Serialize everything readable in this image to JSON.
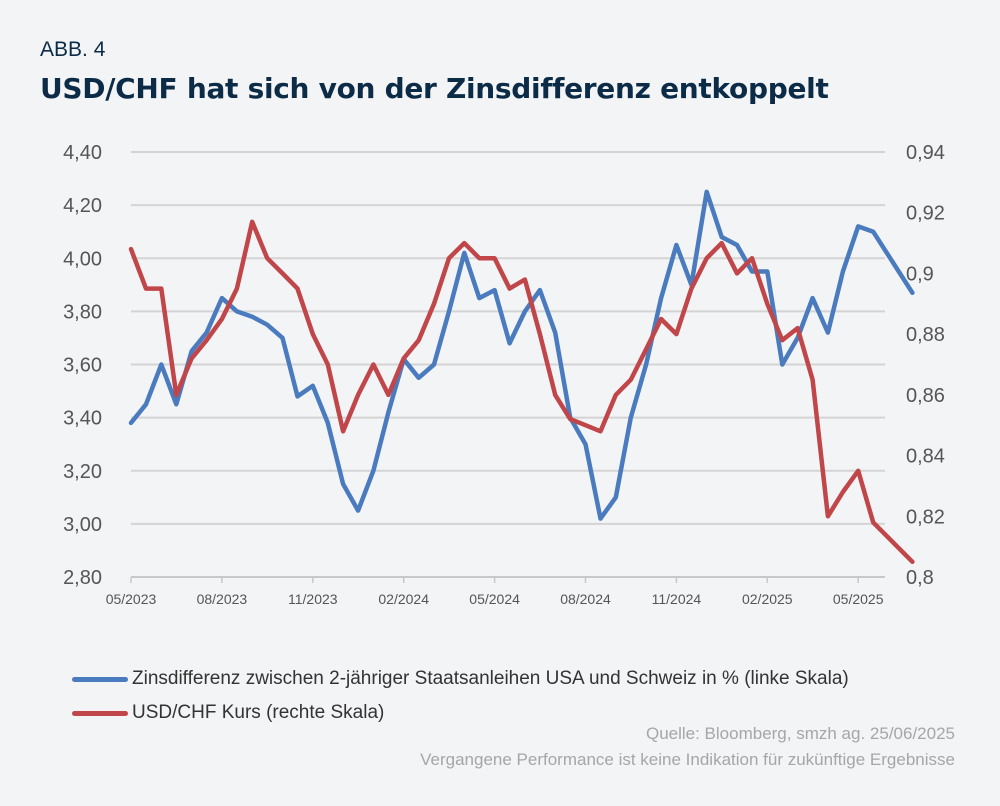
{
  "header": {
    "figure_label": "ABB. 4",
    "title": "USD/CHF hat sich von der Zinsdifferenz entkoppelt"
  },
  "footer": {
    "source": "Quelle: Bloomberg, smzh ag. 25/06/2025",
    "disclaimer": "Vergangene Performance ist keine Indikation für zukünftige Ergebnisse"
  },
  "chart_data": {
    "type": "line",
    "title": "USD/CHF hat sich von der Zinsdifferenz entkoppelt",
    "xlabel": "",
    "ylabel_left": "",
    "ylabel_right": "",
    "x_tick_labels": [
      "05/2023",
      "08/2023",
      "11/2023",
      "02/2024",
      "05/2024",
      "08/2024",
      "11/2024",
      "02/2025",
      "05/2025"
    ],
    "y_left": {
      "lim": [
        2.8,
        4.4
      ],
      "tick_labels": [
        "2,80",
        "3,00",
        "3,20",
        "3,40",
        "3,60",
        "3,80",
        "4,00",
        "4,20",
        "4,40"
      ]
    },
    "y_right": {
      "lim": [
        0.8,
        0.94
      ],
      "tick_labels": [
        "0,8",
        "0,82",
        "0,84",
        "0,86",
        "0,88",
        "0,9",
        "0,92",
        "0,94"
      ]
    },
    "grid": true,
    "legend_placement": "bottom",
    "x": [
      "2023-05-01",
      "2023-05-16",
      "2023-06-01",
      "2023-06-16",
      "2023-07-01",
      "2023-07-16",
      "2023-08-01",
      "2023-08-16",
      "2023-09-01",
      "2023-09-16",
      "2023-10-01",
      "2023-10-16",
      "2023-11-01",
      "2023-11-16",
      "2023-12-01",
      "2023-12-16",
      "2024-01-01",
      "2024-01-16",
      "2024-02-01",
      "2024-02-16",
      "2024-03-01",
      "2024-03-16",
      "2024-04-01",
      "2024-04-16",
      "2024-05-01",
      "2024-05-16",
      "2024-06-01",
      "2024-06-16",
      "2024-07-01",
      "2024-07-16",
      "2024-08-01",
      "2024-08-16",
      "2024-09-01",
      "2024-09-16",
      "2024-10-01",
      "2024-10-16",
      "2024-11-01",
      "2024-11-16",
      "2024-12-01",
      "2024-12-16",
      "2025-01-01",
      "2025-01-16",
      "2025-02-01",
      "2025-02-16",
      "2025-03-01",
      "2025-03-16",
      "2025-04-01",
      "2025-04-16",
      "2025-05-01",
      "2025-05-16",
      "2025-06-25"
    ],
    "series": [
      {
        "name": "Zinsdifferenz zwischen 2-jähriger Staatsanleihen USA und Schweiz in % (linke Skala)",
        "axis": "left",
        "color": "#4a7bbf",
        "values": [
          3.38,
          3.45,
          3.6,
          3.45,
          3.65,
          3.72,
          3.85,
          3.8,
          3.78,
          3.75,
          3.7,
          3.48,
          3.52,
          3.38,
          3.15,
          3.05,
          3.2,
          3.42,
          3.62,
          3.55,
          3.6,
          3.8,
          4.02,
          3.85,
          3.88,
          3.68,
          3.8,
          3.88,
          3.72,
          3.4,
          3.3,
          3.02,
          3.1,
          3.4,
          3.6,
          3.85,
          4.05,
          3.9,
          4.25,
          4.08,
          4.05,
          3.95,
          3.95,
          3.6,
          3.7,
          3.85,
          3.72,
          3.95,
          4.12,
          4.1,
          3.87
        ]
      },
      {
        "name": "USD/CHF Kurs (rechte Skala)",
        "axis": "right",
        "color": "#c0464a",
        "values": [
          0.908,
          0.895,
          0.895,
          0.86,
          0.872,
          0.878,
          0.885,
          0.895,
          0.917,
          0.905,
          0.9,
          0.895,
          0.88,
          0.87,
          0.848,
          0.86,
          0.87,
          0.86,
          0.872,
          0.878,
          0.89,
          0.905,
          0.91,
          0.905,
          0.905,
          0.895,
          0.898,
          0.88,
          0.86,
          0.852,
          0.85,
          0.848,
          0.86,
          0.865,
          0.875,
          0.885,
          0.88,
          0.895,
          0.905,
          0.91,
          0.9,
          0.905,
          0.89,
          0.878,
          0.882,
          0.865,
          0.82,
          0.828,
          0.835,
          0.818,
          0.805
        ]
      }
    ]
  },
  "legend": {
    "items": [
      {
        "label": "Zinsdifferenz zwischen 2-jähriger Staatsanleihen USA und Schweiz in % (linke Skala)",
        "color": "#4a7bbf"
      },
      {
        "label": "USD/CHF Kurs (rechte Skala)",
        "color": "#c0464a"
      }
    ]
  }
}
